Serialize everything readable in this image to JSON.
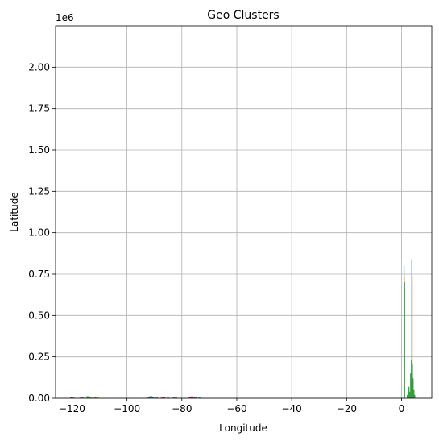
{
  "chart_data": {
    "type": "bar",
    "title": "Geo Clusters",
    "xlabel": "Longitude",
    "ylabel": "Latitude",
    "y_offset_label": "1e6",
    "xlim": [
      -126,
      11
    ],
    "ylim": [
      0,
      2.25
    ],
    "xticks": [
      -120,
      -100,
      -80,
      -60,
      -40,
      -20,
      0
    ],
    "xtick_labels": [
      "−120",
      "−100",
      "−80",
      "−60",
      "−40",
      "−20",
      "0"
    ],
    "yticks": [
      0,
      0.25,
      0.5,
      0.75,
      1.0,
      1.25,
      1.5,
      1.75,
      2.0
    ],
    "ytick_labels": [
      "0.00",
      "0.25",
      "0.50",
      "0.75",
      "1.00",
      "1.25",
      "1.50",
      "1.75",
      "2.00"
    ],
    "grid": true,
    "colors": {
      "blue": "#1f77b4",
      "orange": "#ff7f0e",
      "green": "#2ca02c",
      "red": "#d62728",
      "purple": "#9467bd",
      "brown": "#8c564b",
      "pink": "#e377c2",
      "gray": "#7f7f7f",
      "olive": "#bcbd22",
      "cyan": "#17becf"
    },
    "bars": [
      {
        "x": -120.2,
        "value": 0.009,
        "color": "red"
      },
      {
        "x": -119.6,
        "value": 0.007,
        "color": "purple"
      },
      {
        "x": -116.8,
        "value": 0.008,
        "color": "pink"
      },
      {
        "x": -116.1,
        "value": 0.006,
        "color": "gray"
      },
      {
        "x": -114.3,
        "value": 0.012,
        "color": "green"
      },
      {
        "x": -113.6,
        "value": 0.01,
        "color": "green"
      },
      {
        "x": -112.9,
        "value": 0.007,
        "color": "olive"
      },
      {
        "x": -111.5,
        "value": 0.009,
        "color": "green"
      },
      {
        "x": -110.8,
        "value": 0.006,
        "color": "olive"
      },
      {
        "x": -92.0,
        "value": 0.008,
        "color": "blue"
      },
      {
        "x": -91.3,
        "value": 0.012,
        "color": "blue"
      },
      {
        "x": -90.6,
        "value": 0.01,
        "color": "blue"
      },
      {
        "x": -89.2,
        "value": 0.008,
        "color": "gray"
      },
      {
        "x": -87.2,
        "value": 0.01,
        "color": "purple"
      },
      {
        "x": -86.5,
        "value": 0.008,
        "color": "red"
      },
      {
        "x": -85.1,
        "value": 0.007,
        "color": "pink"
      },
      {
        "x": -82.9,
        "value": 0.009,
        "color": "gray"
      },
      {
        "x": -82.2,
        "value": 0.007,
        "color": "gray"
      },
      {
        "x": -77.1,
        "value": 0.008,
        "color": "red"
      },
      {
        "x": -76.4,
        "value": 0.011,
        "color": "red"
      },
      {
        "x": -75.7,
        "value": 0.01,
        "color": "purple"
      },
      {
        "x": -75.0,
        "value": 0.008,
        "color": "brown"
      },
      {
        "x": -73.6,
        "value": 0.007,
        "color": "cyan"
      },
      {
        "x": 0.9,
        "value": 0.8,
        "color": "blue"
      },
      {
        "x": 1.0,
        "value": 0.73,
        "color": "orange"
      },
      {
        "x": 1.1,
        "value": 0.7,
        "color": "green"
      },
      {
        "x": 2.1,
        "value": 0.02,
        "color": "green"
      },
      {
        "x": 2.4,
        "value": 0.05,
        "color": "green"
      },
      {
        "x": 2.7,
        "value": 0.07,
        "color": "green"
      },
      {
        "x": 3.0,
        "value": 0.04,
        "color": "green"
      },
      {
        "x": 3.3,
        "value": 0.15,
        "color": "green"
      },
      {
        "x": 3.6,
        "value": 0.23,
        "color": "green"
      },
      {
        "x": 3.75,
        "value": 0.84,
        "color": "blue"
      },
      {
        "x": 3.85,
        "value": 0.74,
        "color": "orange"
      },
      {
        "x": 3.95,
        "value": 0.21,
        "color": "green"
      },
      {
        "x": 4.2,
        "value": 0.12,
        "color": "green"
      },
      {
        "x": 4.5,
        "value": 0.05,
        "color": "green"
      },
      {
        "x": 4.8,
        "value": 0.02,
        "color": "green"
      }
    ]
  }
}
